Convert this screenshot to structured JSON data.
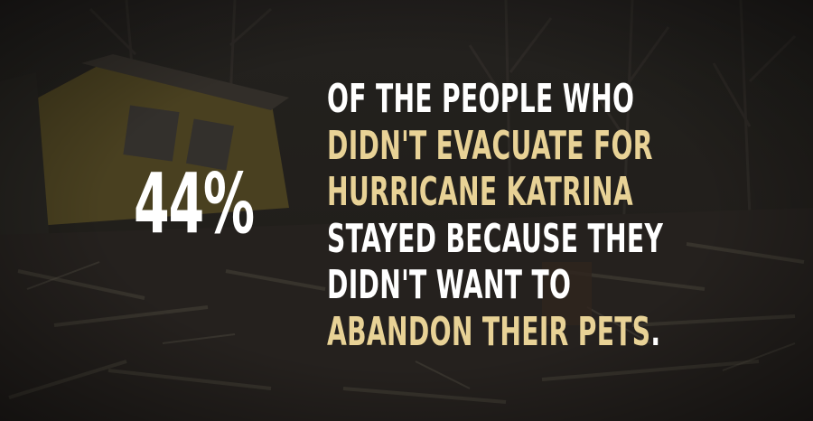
{
  "stat": {
    "value": "44%"
  },
  "message": {
    "lines": [
      {
        "segments": [
          {
            "text": "OF THE PEOPLE WHO",
            "tone": "white"
          }
        ]
      },
      {
        "segments": [
          {
            "text": "DIDN'T EVACUATE FOR",
            "tone": "gold"
          }
        ]
      },
      {
        "segments": [
          {
            "text": "HURRICANE KATRINA",
            "tone": "gold"
          }
        ]
      },
      {
        "segments": [
          {
            "text": "STAYED BECAUSE THEY",
            "tone": "white"
          }
        ]
      },
      {
        "segments": [
          {
            "text": "DIDN'T WANT TO",
            "tone": "white"
          }
        ]
      },
      {
        "segments": [
          {
            "text": "ABANDON THEIR PETS",
            "tone": "gold"
          },
          {
            "text": ".",
            "tone": "white"
          }
        ]
      }
    ]
  },
  "colors": {
    "white_text": "#ffffff",
    "gold_text": "#e8d296",
    "overlay": "#141312"
  },
  "background": {
    "subject": "storm-destroyed-house-and-debris-photo"
  }
}
